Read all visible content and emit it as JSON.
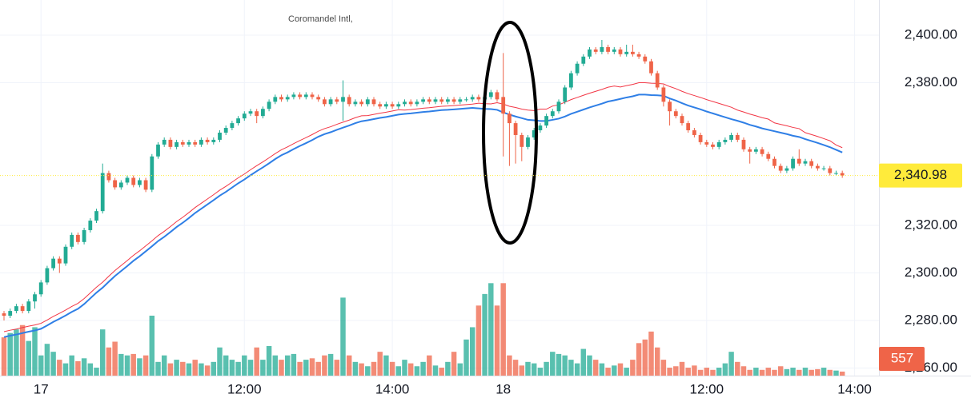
{
  "chart_data": {
    "type": "candlestick",
    "title": "Coromandel Intl,",
    "open": [
      2283,
      2282,
      2284,
      2286,
      2284,
      2288,
      2291,
      2296,
      2302,
      2306,
      2304,
      2311,
      2316,
      2313,
      2318,
      2322,
      2326,
      2342,
      2339,
      2336,
      2338,
      2340,
      2337,
      2339,
      2335,
      2349,
      2354,
      2356,
      2353,
      2355,
      2354,
      2355,
      2354,
      2356,
      2355,
      2356,
      2359,
      2361,
      2363,
      2365,
      2367,
      2368,
      2366,
      2369,
      2372,
      2374,
      2373,
      2374,
      2375,
      2374,
      2375,
      2374,
      2373,
      2371,
      2373,
      2372,
      2374,
      2371,
      2372,
      2371,
      2373,
      2371,
      2370,
      2371,
      2370,
      2371,
      2372,
      2371,
      2372,
      2373,
      2372,
      2373,
      2372,
      2373,
      2372,
      2373,
      2373,
      2374,
      2373,
      2374,
      2376,
      2374,
      2367,
      2363,
      2358,
      2353,
      2357,
      2360,
      2362,
      2366,
      2368,
      2372,
      2378,
      2384,
      2388,
      2391,
      2394,
      2393,
      2395,
      2393,
      2394,
      2392,
      2393,
      2392,
      2391,
      2389,
      2384,
      2378,
      2372,
      2368,
      2366,
      2363,
      2360,
      2358,
      2355,
      2354,
      2353,
      2355,
      2356,
      2358,
      2356,
      2352,
      2351,
      2352,
      2350,
      2348,
      2345,
      2343,
      2344,
      2348,
      2346,
      2347,
      2345,
      2344,
      2344,
      2342,
      2342
    ],
    "high": [
      2284,
      2285,
      2287,
      2287,
      2289,
      2292,
      2297,
      2303,
      2307,
      2307,
      2312,
      2317,
      2317,
      2319,
      2323,
      2327,
      2346,
      2343,
      2340,
      2339,
      2341,
      2341,
      2340,
      2340,
      2350,
      2355,
      2357,
      2357,
      2356,
      2356,
      2356,
      2356,
      2357,
      2357,
      2357,
      2360,
      2362,
      2364,
      2366,
      2368,
      2369,
      2369,
      2370,
      2373,
      2375,
      2375,
      2375,
      2376,
      2376,
      2376,
      2376,
      2375,
      2374,
      2374,
      2374,
      2381,
      2375,
      2373,
      2373,
      2374,
      2374,
      2372,
      2372,
      2372,
      2372,
      2373,
      2373,
      2373,
      2374,
      2374,
      2374,
      2374,
      2374,
      2374,
      2374,
      2374,
      2375,
      2375,
      2375,
      2377,
      2377,
      2392.5,
      2368,
      2364,
      2359,
      2358,
      2361,
      2363,
      2367,
      2369,
      2373,
      2379,
      2385,
      2389,
      2392,
      2395,
      2395,
      2398,
      2396,
      2395,
      2395,
      2396,
      2396,
      2393,
      2392,
      2390,
      2385,
      2379,
      2373,
      2369,
      2367,
      2364,
      2361,
      2359,
      2356,
      2355,
      2356,
      2357,
      2359,
      2359,
      2357,
      2353,
      2353,
      2353,
      2351,
      2349,
      2346,
      2345,
      2349,
      2352,
      2348,
      2348,
      2346,
      2345,
      2345,
      2343,
      2343
    ],
    "low": [
      2280,
      2281,
      2283,
      2283,
      2283,
      2285,
      2290,
      2295,
      2301,
      2300,
      2303,
      2310,
      2312,
      2312,
      2317,
      2321,
      2325,
      2338,
      2335,
      2335,
      2337,
      2336,
      2336,
      2334,
      2334,
      2348,
      2353,
      2352,
      2352,
      2353,
      2353,
      2353,
      2353,
      2354,
      2354,
      2355,
      2358,
      2360,
      2362,
      2364,
      2366,
      2363,
      2365,
      2368,
      2371,
      2372,
      2372,
      2373,
      2373,
      2373,
      2373,
      2372,
      2370,
      2370,
      2371,
      2364,
      2370,
      2370,
      2370,
      2370,
      2370,
      2369,
      2369,
      2369,
      2369,
      2370,
      2370,
      2370,
      2371,
      2371,
      2371,
      2371,
      2371,
      2371,
      2371,
      2372,
      2372,
      2372,
      2372,
      2373,
      2372,
      2349,
      2345,
      2346,
      2347,
      2352,
      2356,
      2359,
      2361,
      2365,
      2367,
      2371,
      2377,
      2383,
      2387,
      2390,
      2392,
      2392,
      2392,
      2392,
      2391,
      2391,
      2391,
      2390,
      2388,
      2383,
      2377,
      2370,
      2362,
      2365,
      2362,
      2359,
      2357,
      2354,
      2353,
      2352,
      2352,
      2354,
      2355,
      2355,
      2351,
      2346,
      2350,
      2349,
      2347,
      2344,
      2342,
      2342,
      2343,
      2345,
      2345,
      2344,
      2343,
      2343,
      2341,
      2341,
      2340
    ],
    "close": [
      2282,
      2284,
      2286,
      2284,
      2288,
      2291,
      2296,
      2302,
      2306,
      2304,
      2311,
      2316,
      2313,
      2318,
      2322,
      2326,
      2342,
      2339,
      2336,
      2338,
      2340,
      2337,
      2339,
      2335,
      2349,
      2354,
      2356,
      2353,
      2355,
      2354,
      2355,
      2354,
      2356,
      2355,
      2356,
      2359,
      2361,
      2363,
      2365,
      2367,
      2368,
      2366,
      2369,
      2372,
      2374,
      2373,
      2374,
      2375,
      2374,
      2375,
      2374,
      2373,
      2371,
      2373,
      2372,
      2374,
      2371,
      2372,
      2371,
      2373,
      2371,
      2370,
      2371,
      2370,
      2371,
      2372,
      2371,
      2372,
      2373,
      2372,
      2373,
      2372,
      2373,
      2372,
      2373,
      2373,
      2374,
      2373,
      2374,
      2376,
      2373,
      2367,
      2363,
      2358,
      2353,
      2357,
      2360,
      2362,
      2366,
      2368,
      2372,
      2378,
      2384,
      2388,
      2391,
      2394,
      2393,
      2395,
      2393,
      2394,
      2392,
      2393,
      2392,
      2391,
      2389,
      2384,
      2378,
      2372,
      2368,
      2366,
      2363,
      2360,
      2358,
      2355,
      2354,
      2353,
      2355,
      2356,
      2358,
      2356,
      2352,
      2351,
      2352,
      2350,
      2348,
      2345,
      2343,
      2344,
      2348,
      2346,
      2347,
      2345,
      2344,
      2344,
      2342,
      2342,
      2340.98
    ],
    "volume": [
      5300,
      5900,
      6400,
      7000,
      4800,
      6700,
      2800,
      4400,
      3300,
      2200,
      1700,
      2800,
      2000,
      2400,
      1700,
      1100,
      6400,
      3900,
      4700,
      3000,
      2800,
      3000,
      2400,
      2800,
      8300,
      1900,
      2800,
      1700,
      2200,
      1900,
      1700,
      2200,
      1700,
      1400,
      1900,
      3900,
      2800,
      2200,
      1900,
      2800,
      2200,
      3900,
      2200,
      4100,
      2800,
      2200,
      2800,
      3000,
      1900,
      2200,
      2400,
      1900,
      2800,
      3000,
      2200,
      10800,
      2800,
      1900,
      1700,
      1300,
      1900,
      3300,
      2800,
      1900,
      1300,
      2200,
      1700,
      1300,
      1900,
      2800,
      1400,
      1100,
      1900,
      3300,
      1700,
      5000,
      6700,
      9700,
      11300,
      12800,
      9700,
      12800,
      2800,
      2200,
      1400,
      1900,
      1700,
      1100,
      1900,
      3300,
      3000,
      2800,
      2200,
      1700,
      3700,
      2800,
      2200,
      1700,
      1100,
      1400,
      1700,
      1100,
      2200,
      4500,
      5000,
      6100,
      3900,
      2200,
      1100,
      1300,
      1900,
      1100,
      1400,
      800,
      1100,
      800,
      1100,
      1700,
      3300,
      1900,
      1300,
      800,
      1100,
      800,
      1100,
      800,
      1300,
      900,
      1100,
      800,
      1100,
      800,
      900,
      1100,
      800,
      700,
      557
    ],
    "up_color": "#22ab94",
    "down_color": "#ef6448",
    "lines": [
      {
        "color": "#2f7fe6",
        "values": [
          2273.0,
          2273.6,
          2274.1,
          2274.7,
          2275.3,
          2275.8,
          2276.5,
          2277.9,
          2279.4,
          2280.7,
          2282.1,
          2283.6,
          2284.9,
          2286.9,
          2289.3,
          2291.7,
          2293.8,
          2296.3,
          2298.7,
          2300.8,
          2302.9,
          2305.1,
          2307.0,
          2309.1,
          2311.2,
          2313.4,
          2315.2,
          2317.2,
          2319.3,
          2321.1,
          2323.1,
          2325.2,
          2327.0,
          2328.8,
          2330.6,
          2332.5,
          2334.1,
          2335.9,
          2337.7,
          2339.3,
          2341.1,
          2342.8,
          2344.4,
          2346.1,
          2347.9,
          2349.5,
          2350.7,
          2352.1,
          2353.4,
          2354.6,
          2355.9,
          2357.3,
          2358.4,
          2359.2,
          2360.2,
          2361.1,
          2362.0,
          2363.0,
          2363.8,
          2364.2,
          2364.7,
          2365.2,
          2365.6,
          2366.1,
          2366.6,
          2366.9,
          2367.1,
          2367.4,
          2367.7,
          2367.9,
          2368.2,
          2368.5,
          2368.6,
          2368.8,
          2369.0,
          2369.2,
          2369.4,
          2369.2,
          2369.0,
          2368.9,
          2368.6,
          2367.5,
          2366.6,
          2365.8,
          2365.1,
          2364.4,
          2364.2,
          2363.9,
          2363.9,
          2364.4,
          2364.9,
          2365.8,
          2366.9,
          2367.8,
          2368.7,
          2369.6,
          2370.4,
          2371.2,
          2372.1,
          2372.6,
          2373.2,
          2373.8,
          2374.3,
          2375.0,
          2375.0,
          2374.8,
          2374.7,
          2374.5,
          2373.4,
          2372.5,
          2371.4,
          2370.4,
          2369.6,
          2368.8,
          2367.9,
          2367.1,
          2366.3,
          2365.5,
          2364.7,
          2364.0,
          2363.2,
          2362.3,
          2361.6,
          2360.8,
          2360.2,
          2359.6,
          2359.0,
          2358.4,
          2357.7,
          2357.2,
          2356.3,
          2355.5,
          2354.7,
          2353.8,
          2352.9,
          2351.8,
          2350.7
        ]
      },
      {
        "color": "#f23645",
        "values": [
          2275.3,
          2275.9,
          2276.4,
          2277.0,
          2277.6,
          2278.1,
          2278.8,
          2280.2,
          2281.7,
          2283.0,
          2284.4,
          2285.9,
          2287.2,
          2289.2,
          2291.6,
          2294.0,
          2296.1,
          2298.6,
          2301.0,
          2303.1,
          2305.2,
          2307.4,
          2309.3,
          2311.4,
          2313.5,
          2315.7,
          2317.5,
          2319.5,
          2321.6,
          2323.4,
          2325.4,
          2327.5,
          2329.3,
          2331.1,
          2332.9,
          2334.8,
          2336.4,
          2338.2,
          2340.0,
          2341.6,
          2343.4,
          2345.1,
          2346.7,
          2348.4,
          2350.2,
          2351.8,
          2353.0,
          2354.4,
          2355.7,
          2356.9,
          2358.2,
          2359.6,
          2360.7,
          2361.5,
          2362.5,
          2363.4,
          2364.3,
          2365.3,
          2366.1,
          2366.2,
          2366.7,
          2367.2,
          2367.6,
          2368.1,
          2368.6,
          2368.5,
          2368.7,
          2369.0,
          2369.3,
          2369.5,
          2369.8,
          2370.1,
          2370.2,
          2370.4,
          2370.6,
          2370.8,
          2371.0,
          2371.4,
          2371.2,
          2371.1,
          2371.6,
          2371.0,
          2370.1,
          2369.6,
          2368.9,
          2368.5,
          2368.3,
          2368.9,
          2368.9,
          2370.2,
          2370.7,
          2371.8,
          2372.9,
          2373.8,
          2374.7,
          2375.6,
          2376.4,
          2377.2,
          2378.1,
          2378.6,
          2378.2,
          2378.8,
          2379.3,
          2380.0,
          2380.0,
          2379.8,
          2379.7,
          2379.5,
          2378.4,
          2377.5,
          2376.4,
          2375.4,
          2374.6,
          2373.8,
          2372.9,
          2372.1,
          2371.3,
          2370.5,
          2369.7,
          2368.5,
          2367.7,
          2366.8,
          2366.1,
          2365.3,
          2364.7,
          2363.1,
          2362.5,
          2361.9,
          2361.2,
          2360.7,
          2359.0,
          2358.2,
          2357.4,
          2356.5,
          2355.6,
          2353.8,
          2352.7
        ]
      }
    ],
    "xlim": [
      -0.65,
      141.95
    ],
    "xticks": [
      {
        "value": 6,
        "label": "17"
      },
      {
        "value": 39,
        "label": "12:00"
      },
      {
        "value": 63,
        "label": "14:00"
      },
      {
        "value": 81,
        "label": "18"
      },
      {
        "value": 114,
        "label": "12:00"
      },
      {
        "value": 138,
        "label": "14:00"
      }
    ],
    "ylim": [
      2256.8,
      2414.8
    ],
    "yticks": [
      {
        "value": 2260,
        "label": "2,260.00"
      },
      {
        "value": 2280,
        "label": "2,280.00"
      },
      {
        "value": 2300,
        "label": "2,300.00"
      },
      {
        "value": 2320,
        "label": "2,320.00"
      },
      {
        "value": 2380,
        "label": "2,380.00"
      },
      {
        "value": 2400,
        "label": "2,400.00"
      }
    ],
    "y2lim": [
      0,
      52000
    ],
    "grid": true,
    "last_close_label": "2,340.98",
    "last_close_color": "#ffeb3b"
  }
}
